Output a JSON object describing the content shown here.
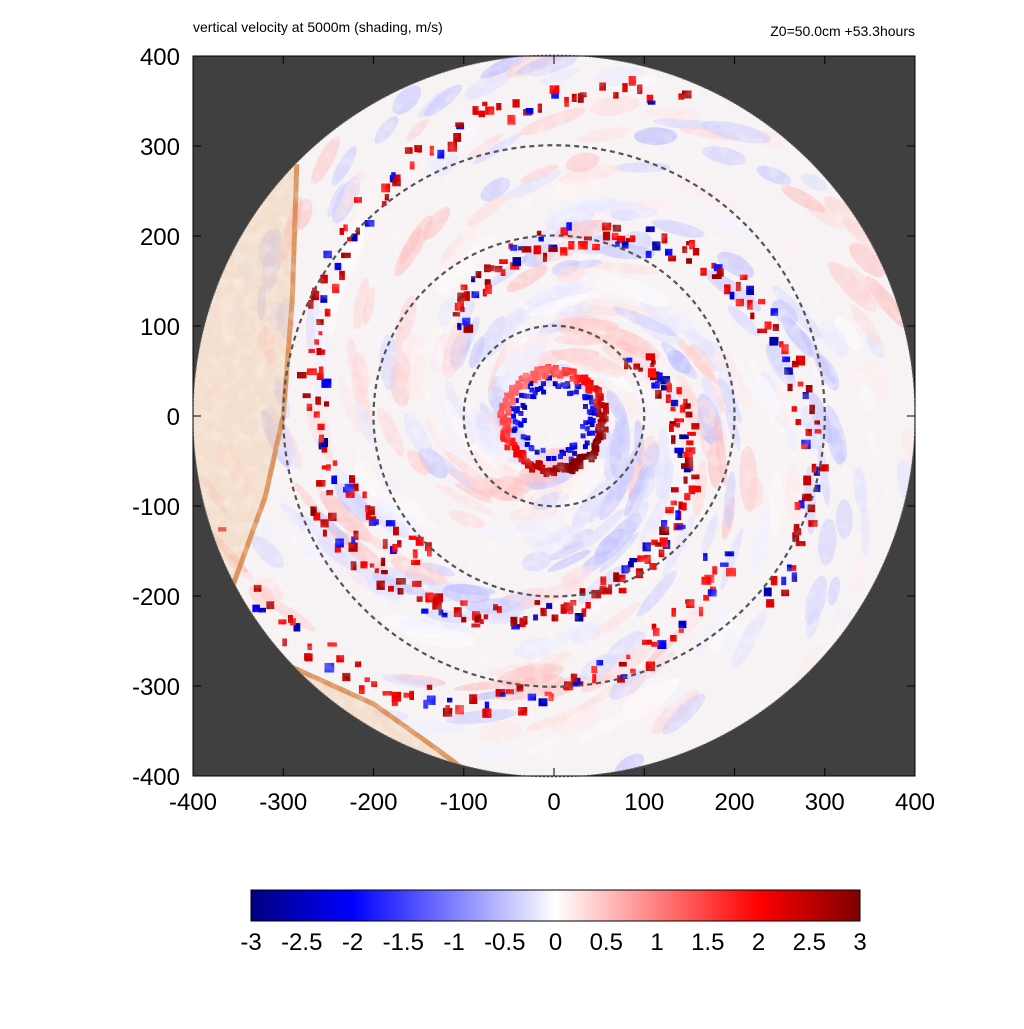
{
  "chart_data": {
    "type": "heatmap",
    "title": "vertical velocity at 5000m (shading, m/s)",
    "subtitle": "Z0=50.0cm  +53.3hours",
    "xlabel": "",
    "ylabel": "",
    "xlim": [
      -400,
      400
    ],
    "ylim": [
      -400,
      400
    ],
    "x_ticks": [
      "-400",
      "-300",
      "-200",
      "-100",
      "0",
      "100",
      "200",
      "300",
      "400"
    ],
    "y_ticks": [
      "400",
      "300",
      "200",
      "100",
      "0",
      "-100",
      "-200",
      "-300",
      "-400"
    ],
    "x_tick_values": [
      -400,
      -300,
      -200,
      -100,
      0,
      100,
      200,
      300,
      400
    ],
    "y_tick_values": [
      400,
      300,
      200,
      100,
      0,
      -100,
      -200,
      -300,
      -400
    ],
    "domain_radius": 400,
    "range_rings": [
      100,
      200,
      300
    ],
    "colorbar": {
      "min": -3,
      "max": 3,
      "ticks": [
        "-3",
        "-2.5",
        "-2",
        "-1.5",
        "-1",
        "-0.5",
        "0",
        "0.5",
        "1",
        "1.5",
        "2",
        "2.5",
        "3"
      ],
      "tick_values": [
        -3,
        -2.5,
        -2,
        -1.5,
        -1,
        -0.5,
        0,
        0.5,
        1,
        1.5,
        2,
        2.5,
        3
      ],
      "stops": [
        {
          "value": -3,
          "color": "#00007f"
        },
        {
          "value": -2,
          "color": "#0000ff"
        },
        {
          "value": 0,
          "color": "#ffffff"
        },
        {
          "value": 2,
          "color": "#ff0000"
        },
        {
          "value": 3,
          "color": "#7f0000"
        }
      ]
    },
    "colors": {
      "outside_domain": "#404040",
      "land_fill": "#f0c8a0",
      "coastline": "#d98c50",
      "ring": "#555555"
    },
    "features": {
      "eyewall_radius_km": 55,
      "coastline": [
        [
          -285,
          280
        ],
        [
          -290,
          130
        ],
        [
          -300,
          0
        ],
        [
          -320,
          -90
        ],
        [
          -360,
          -200
        ],
        [
          -310,
          -270
        ],
        [
          -200,
          -320
        ],
        [
          -130,
          -370
        ],
        [
          -90,
          -400
        ]
      ]
    }
  }
}
